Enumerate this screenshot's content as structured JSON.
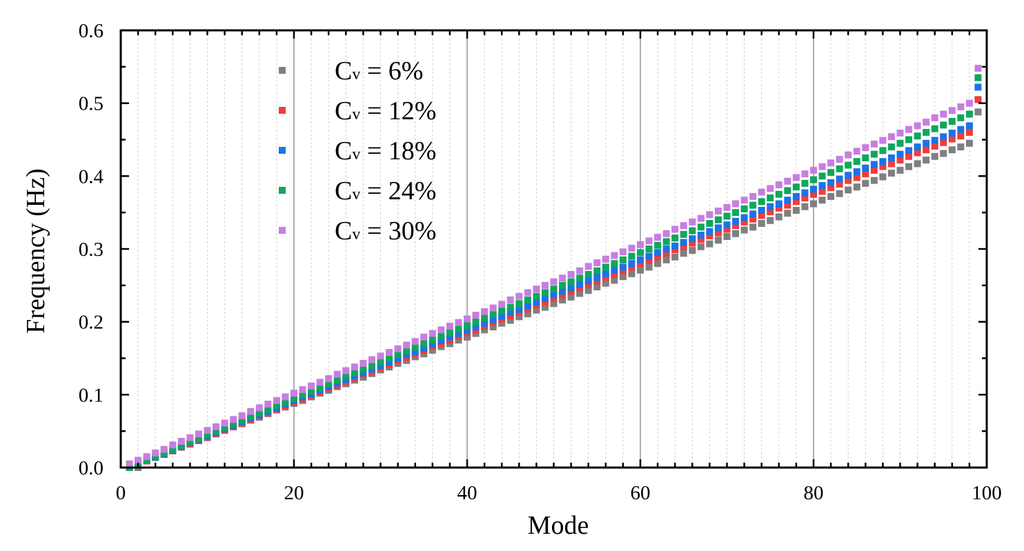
{
  "chart_data": {
    "type": "scatter",
    "title": "",
    "xlabel": "Mode",
    "ylabel": "Frequency (Hz)",
    "xlim": [
      0,
      100
    ],
    "ylim": [
      0.0,
      0.6
    ],
    "xticks": [
      0,
      20,
      40,
      60,
      80,
      100
    ],
    "xtick_labels": [
      "0",
      "20",
      "40",
      "60",
      "80",
      "100"
    ],
    "yticks": [
      0.0,
      0.1,
      0.2,
      0.3,
      0.4,
      0.5,
      0.6
    ],
    "ytick_labels": [
      "0.0",
      "0.1",
      "0.2",
      "0.3",
      "0.4",
      "0.5",
      "0.6"
    ],
    "grid": "vertical",
    "legend_position": "upper-left",
    "legend_prefix": "C",
    "legend_subscript": "v",
    "marker": "square",
    "x": [
      1,
      2,
      3,
      4,
      5,
      6,
      7,
      8,
      9,
      10,
      11,
      12,
      13,
      14,
      15,
      16,
      17,
      18,
      19,
      20,
      21,
      22,
      23,
      24,
      25,
      26,
      27,
      28,
      29,
      30,
      31,
      32,
      33,
      34,
      35,
      36,
      37,
      38,
      39,
      40,
      41,
      42,
      43,
      44,
      45,
      46,
      47,
      48,
      49,
      50,
      51,
      52,
      53,
      54,
      55,
      56,
      57,
      58,
      59,
      60,
      61,
      62,
      63,
      64,
      65,
      66,
      67,
      68,
      69,
      70,
      71,
      72,
      73,
      74,
      75,
      76,
      77,
      78,
      79,
      80,
      81,
      82,
      83,
      84,
      85,
      86,
      87,
      88,
      89,
      90,
      91,
      92,
      93,
      94,
      95,
      96,
      97,
      98,
      99
    ],
    "series": [
      {
        "name": "= 6%",
        "color": "#7f7f7f",
        "values": [
          0.0,
          0.0,
          0.009,
          0.014,
          0.018,
          0.023,
          0.028,
          0.032,
          0.037,
          0.041,
          0.046,
          0.051,
          0.056,
          0.06,
          0.065,
          0.069,
          0.074,
          0.079,
          0.083,
          0.088,
          0.092,
          0.097,
          0.102,
          0.106,
          0.111,
          0.115,
          0.12,
          0.124,
          0.129,
          0.134,
          0.138,
          0.143,
          0.147,
          0.152,
          0.156,
          0.161,
          0.166,
          0.17,
          0.175,
          0.179,
          0.184,
          0.189,
          0.193,
          0.198,
          0.202,
          0.207,
          0.211,
          0.216,
          0.22,
          0.225,
          0.23,
          0.234,
          0.239,
          0.243,
          0.248,
          0.253,
          0.257,
          0.262,
          0.266,
          0.271,
          0.275,
          0.28,
          0.285,
          0.289,
          0.294,
          0.298,
          0.303,
          0.307,
          0.312,
          0.317,
          0.321,
          0.326,
          0.33,
          0.335,
          0.339,
          0.344,
          0.349,
          0.353,
          0.358,
          0.362,
          0.367,
          0.372,
          0.376,
          0.381,
          0.385,
          0.39,
          0.394,
          0.399,
          0.404,
          0.408,
          0.413,
          0.417,
          0.422,
          0.427,
          0.431,
          0.436,
          0.44,
          0.445,
          0.488
        ]
      },
      {
        "name": "= 12%",
        "color": "#f03c3c",
        "values": [
          0.0,
          0.004,
          0.009,
          0.014,
          0.018,
          0.023,
          0.028,
          0.033,
          0.037,
          0.042,
          0.047,
          0.052,
          0.056,
          0.061,
          0.066,
          0.071,
          0.075,
          0.08,
          0.085,
          0.09,
          0.094,
          0.099,
          0.104,
          0.109,
          0.113,
          0.118,
          0.123,
          0.128,
          0.132,
          0.137,
          0.142,
          0.147,
          0.151,
          0.156,
          0.161,
          0.166,
          0.17,
          0.175,
          0.18,
          0.185,
          0.189,
          0.194,
          0.199,
          0.204,
          0.208,
          0.213,
          0.218,
          0.223,
          0.227,
          0.232,
          0.237,
          0.242,
          0.246,
          0.251,
          0.256,
          0.261,
          0.265,
          0.27,
          0.275,
          0.28,
          0.284,
          0.289,
          0.294,
          0.299,
          0.303,
          0.308,
          0.313,
          0.318,
          0.322,
          0.327,
          0.332,
          0.337,
          0.341,
          0.346,
          0.351,
          0.356,
          0.36,
          0.365,
          0.37,
          0.375,
          0.379,
          0.384,
          0.389,
          0.394,
          0.398,
          0.403,
          0.408,
          0.413,
          0.417,
          0.422,
          0.427,
          0.432,
          0.436,
          0.441,
          0.446,
          0.451,
          0.455,
          0.46,
          0.505
        ]
      },
      {
        "name": "= 18%",
        "color": "#1a73e8",
        "values": [
          0.0,
          0.005,
          0.01,
          0.014,
          0.019,
          0.024,
          0.029,
          0.034,
          0.039,
          0.043,
          0.048,
          0.053,
          0.058,
          0.063,
          0.068,
          0.072,
          0.077,
          0.082,
          0.087,
          0.092,
          0.097,
          0.101,
          0.106,
          0.111,
          0.116,
          0.121,
          0.126,
          0.13,
          0.135,
          0.14,
          0.145,
          0.15,
          0.155,
          0.159,
          0.164,
          0.169,
          0.174,
          0.179,
          0.184,
          0.188,
          0.193,
          0.198,
          0.203,
          0.208,
          0.213,
          0.217,
          0.222,
          0.227,
          0.232,
          0.237,
          0.242,
          0.246,
          0.251,
          0.256,
          0.261,
          0.266,
          0.271,
          0.275,
          0.28,
          0.285,
          0.29,
          0.295,
          0.3,
          0.304,
          0.309,
          0.314,
          0.319,
          0.324,
          0.329,
          0.333,
          0.338,
          0.343,
          0.348,
          0.353,
          0.358,
          0.362,
          0.367,
          0.372,
          0.377,
          0.382,
          0.387,
          0.391,
          0.396,
          0.401,
          0.406,
          0.411,
          0.416,
          0.42,
          0.425,
          0.43,
          0.435,
          0.44,
          0.445,
          0.449,
          0.454,
          0.459,
          0.464,
          0.469,
          0.522
        ]
      },
      {
        "name": "= 24%",
        "color": "#0ea75c",
        "values": [
          0.0,
          0.005,
          0.01,
          0.015,
          0.02,
          0.025,
          0.03,
          0.035,
          0.04,
          0.045,
          0.05,
          0.055,
          0.06,
          0.065,
          0.07,
          0.075,
          0.08,
          0.085,
          0.09,
          0.095,
          0.1,
          0.105,
          0.11,
          0.115,
          0.12,
          0.125,
          0.13,
          0.135,
          0.14,
          0.145,
          0.15,
          0.155,
          0.16,
          0.165,
          0.17,
          0.175,
          0.18,
          0.185,
          0.19,
          0.195,
          0.2,
          0.205,
          0.21,
          0.215,
          0.22,
          0.225,
          0.23,
          0.235,
          0.24,
          0.245,
          0.25,
          0.255,
          0.26,
          0.265,
          0.27,
          0.275,
          0.28,
          0.285,
          0.29,
          0.295,
          0.3,
          0.305,
          0.31,
          0.315,
          0.32,
          0.325,
          0.33,
          0.335,
          0.34,
          0.345,
          0.35,
          0.355,
          0.36,
          0.365,
          0.37,
          0.375,
          0.38,
          0.385,
          0.39,
          0.395,
          0.4,
          0.405,
          0.41,
          0.415,
          0.42,
          0.425,
          0.43,
          0.435,
          0.44,
          0.445,
          0.45,
          0.455,
          0.46,
          0.465,
          0.47,
          0.475,
          0.48,
          0.485,
          0.535
        ]
      },
      {
        "name": "= 30%",
        "color": "#c77ee0",
        "values": [
          0.005,
          0.01,
          0.015,
          0.02,
          0.025,
          0.031,
          0.036,
          0.041,
          0.046,
          0.051,
          0.056,
          0.061,
          0.066,
          0.071,
          0.077,
          0.082,
          0.087,
          0.092,
          0.097,
          0.102,
          0.107,
          0.112,
          0.117,
          0.122,
          0.128,
          0.133,
          0.138,
          0.143,
          0.148,
          0.153,
          0.158,
          0.163,
          0.168,
          0.173,
          0.179,
          0.184,
          0.189,
          0.194,
          0.199,
          0.204,
          0.209,
          0.214,
          0.219,
          0.224,
          0.23,
          0.235,
          0.24,
          0.245,
          0.25,
          0.255,
          0.26,
          0.265,
          0.27,
          0.276,
          0.281,
          0.286,
          0.291,
          0.296,
          0.301,
          0.306,
          0.311,
          0.316,
          0.321,
          0.327,
          0.332,
          0.337,
          0.342,
          0.347,
          0.352,
          0.357,
          0.362,
          0.367,
          0.372,
          0.378,
          0.383,
          0.388,
          0.393,
          0.398,
          0.403,
          0.408,
          0.413,
          0.418,
          0.423,
          0.429,
          0.434,
          0.439,
          0.444,
          0.449,
          0.454,
          0.459,
          0.464,
          0.469,
          0.474,
          0.48,
          0.485,
          0.49,
          0.495,
          0.5,
          0.548
        ]
      }
    ]
  }
}
